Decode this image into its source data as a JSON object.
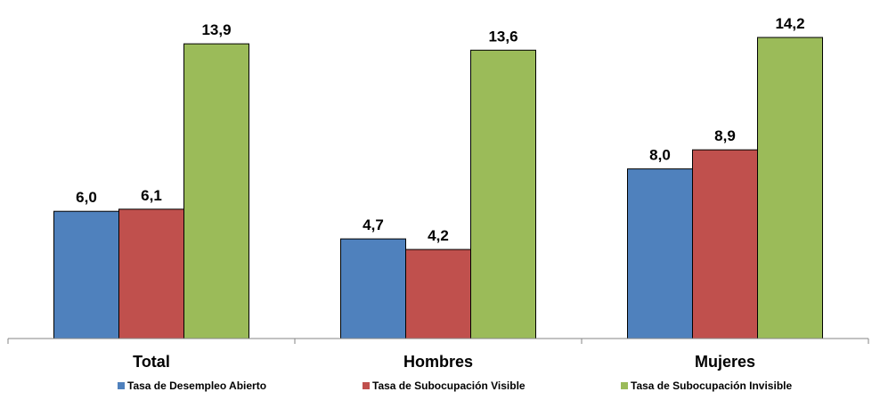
{
  "chart_data": {
    "type": "bar",
    "categories": [
      "Total",
      "Hombres",
      "Mujeres"
    ],
    "series": [
      {
        "name": "Tasa de Desempleo Abierto",
        "color": "#4f81bd",
        "values": [
          6.0,
          4.7,
          8.0
        ],
        "labels": [
          "6,0",
          "4,7",
          "8,0"
        ]
      },
      {
        "name": "Tasa de Subocupación Visible",
        "color": "#c0504d",
        "values": [
          6.1,
          4.2,
          8.9
        ],
        "labels": [
          "6,1",
          "4,2",
          "8,9"
        ]
      },
      {
        "name": "Tasa de Subocupación Invisible",
        "color": "#9bbb59",
        "values": [
          13.9,
          13.6,
          14.2
        ],
        "labels": [
          "13,9",
          "13,6",
          "14,2"
        ]
      }
    ],
    "ylim": [
      0,
      16
    ],
    "grid": false,
    "legend_position": "bottom",
    "title": "",
    "xlabel": "",
    "ylabel": ""
  }
}
